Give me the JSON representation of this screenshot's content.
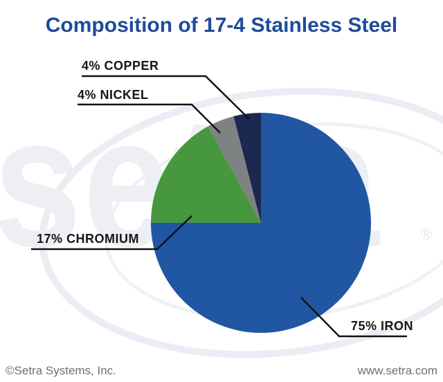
{
  "title": "Composition of 17-4 Stainless Steel",
  "title_color": "#1e4b9b",
  "watermark": {
    "text": "setra",
    "registered_mark": "®",
    "color": "#edeff4"
  },
  "footer": {
    "left": "©Setra Systems, Inc.",
    "right": "www.setra.com"
  },
  "chart_data": {
    "type": "pie",
    "title": "Composition of 17-4 Stainless Steel",
    "start_angle_deg": -90,
    "direction": "clockwise",
    "legend": "none",
    "labels_style": "callout-lines",
    "slices": [
      {
        "name": "Iron",
        "label": "75% IRON",
        "value": 75,
        "color": "#2156a3"
      },
      {
        "name": "Chromium",
        "label": "17% CHROMIUM",
        "value": 17,
        "color": "#47973f"
      },
      {
        "name": "Nickel",
        "label": "4% NICKEL",
        "value": 4,
        "color": "#7f8283"
      },
      {
        "name": "Copper",
        "label": "4% COPPER",
        "value": 4,
        "color": "#1b2951"
      }
    ]
  }
}
